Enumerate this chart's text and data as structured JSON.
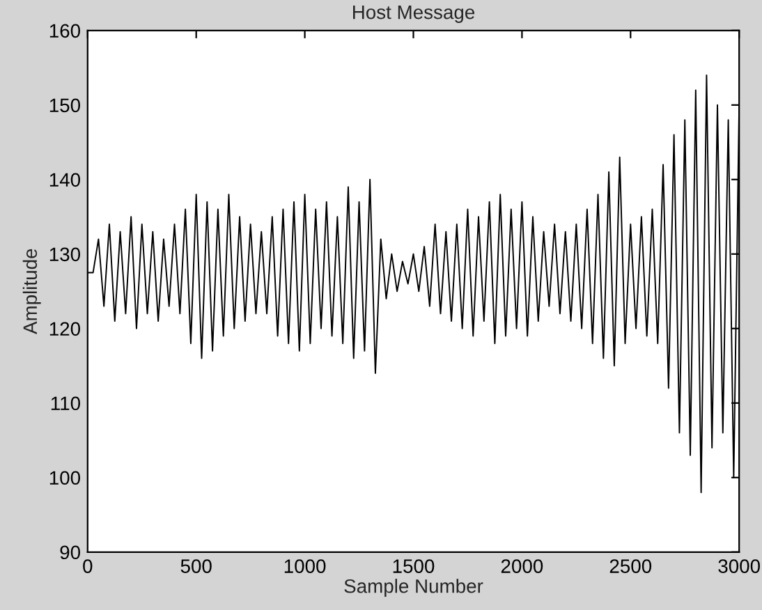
{
  "chart_data": {
    "type": "line",
    "title": "Host Message",
    "xlabel": "Sample Number",
    "ylabel": "Amplitude",
    "x": [
      0,
      25,
      50,
      75,
      100,
      125,
      150,
      175,
      200,
      225,
      250,
      275,
      300,
      325,
      350,
      375,
      400,
      425,
      450,
      475,
      500,
      525,
      550,
      575,
      600,
      625,
      650,
      675,
      700,
      725,
      750,
      775,
      800,
      825,
      850,
      875,
      900,
      925,
      950,
      975,
      1000,
      1025,
      1050,
      1075,
      1100,
      1125,
      1150,
      1175,
      1200,
      1225,
      1250,
      1275,
      1300,
      1325,
      1350,
      1375,
      1400,
      1425,
      1450,
      1475,
      1500,
      1525,
      1550,
      1575,
      1600,
      1625,
      1650,
      1675,
      1700,
      1725,
      1750,
      1775,
      1800,
      1825,
      1850,
      1875,
      1900,
      1925,
      1950,
      1975,
      2000,
      2025,
      2050,
      2075,
      2100,
      2125,
      2150,
      2175,
      2200,
      2225,
      2250,
      2275,
      2300,
      2325,
      2350,
      2375,
      2400,
      2425,
      2450,
      2475,
      2500,
      2525,
      2550,
      2575,
      2600,
      2625,
      2650,
      2675,
      2700,
      2725,
      2750,
      2775,
      2800,
      2825,
      2850,
      2875,
      2900,
      2925,
      2950,
      2975,
      3000
    ],
    "series": [
      {
        "color": "#000000",
        "values": [
          127.5,
          127.5,
          132,
          123,
          134,
          121,
          133,
          122,
          135,
          120,
          134,
          122,
          133,
          121,
          132,
          123,
          134,
          122,
          136,
          118,
          138,
          116,
          137,
          117,
          136,
          119,
          138,
          120,
          135,
          121,
          134,
          122,
          133,
          122,
          135,
          119,
          136,
          118,
          137,
          117,
          138,
          118,
          136,
          120,
          137,
          119,
          135,
          118,
          139,
          116,
          137,
          117,
          140,
          114,
          132,
          124,
          130,
          125,
          129,
          126,
          130,
          125,
          131,
          123,
          134,
          122,
          133,
          121,
          134,
          120,
          136,
          119,
          135,
          121,
          137,
          118,
          138,
          119,
          136,
          120,
          137,
          119,
          135,
          121,
          133,
          123,
          134,
          122,
          133,
          121,
          134,
          120,
          136,
          118,
          138,
          116,
          141,
          115,
          143,
          118,
          134,
          120,
          135,
          119,
          136,
          118,
          142,
          112,
          146,
          106,
          148,
          103,
          152,
          98,
          154,
          104,
          150,
          106,
          148,
          100,
          150
        ]
      }
    ],
    "xlim": [
      0,
      3000
    ],
    "ylim": [
      90,
      160
    ],
    "xticks": [
      0,
      500,
      1000,
      1500,
      2000,
      2500,
      3000
    ],
    "yticks": [
      90,
      100,
      110,
      120,
      130,
      140,
      150,
      160
    ],
    "grid": false,
    "legend": false,
    "marker": "none",
    "line_style": "solid"
  }
}
